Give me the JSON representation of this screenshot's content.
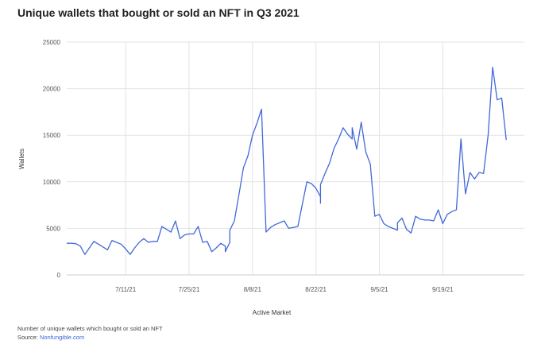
{
  "chart_data": {
    "type": "line",
    "title": "Unique wallets that bought or sold an NFT in Q3 2021",
    "xlabel": "Active Market",
    "ylabel": "Wallets",
    "ylim": [
      0,
      25000
    ],
    "yticks": [
      "0",
      "5000",
      "10000",
      "15000",
      "20000",
      "25000"
    ],
    "x_range": [
      "2021-06-28",
      "2021-10-07"
    ],
    "xticks": [
      {
        "date": "2021-07-11",
        "label": "7/11/21"
      },
      {
        "date": "2021-07-25",
        "label": "7/25/21"
      },
      {
        "date": "2021-08-08",
        "label": "8/8/21"
      },
      {
        "date": "2021-08-22",
        "label": "8/22/21"
      },
      {
        "date": "2021-09-05",
        "label": "9/5/21"
      },
      {
        "date": "2021-09-19",
        "label": "9/19/21"
      }
    ],
    "grid": {
      "x": true,
      "y": true
    },
    "series": [
      {
        "color": "#4169d8",
        "x": [
          "2021-06-28",
          "2021-06-29",
          "2021-06-30",
          "2021-07-01",
          "2021-07-02",
          "2021-07-03",
          "2021-07-04",
          "2021-07-05",
          "2021-07-06",
          "2021-07-07",
          "2021-07-08",
          "2021-07-09",
          "2021-07-10",
          "2021-07-11",
          "2021-07-12",
          "2021-07-13",
          "2021-07-14",
          "2021-07-15",
          "2021-07-16",
          "2021-07-17",
          "2021-07-18",
          "2021-07-19",
          "2021-07-20",
          "2021-07-21",
          "2021-07-22",
          "2021-07-23",
          "2021-07-24",
          "2021-07-25",
          "2021-07-26",
          "2021-07-27",
          "2021-07-28",
          "2021-07-29",
          "2021-07-30",
          "2021-07-31",
          "2021-08-01",
          "2021-08-02",
          "2021-08-02",
          "2021-08-03",
          "2021-08-03",
          "2021-08-04",
          "2021-08-05",
          "2021-08-06",
          "2021-08-07",
          "2021-08-08",
          "2021-08-09",
          "2021-08-10",
          "2021-08-11",
          "2021-08-12",
          "2021-08-13",
          "2021-08-14",
          "2021-08-15",
          "2021-08-16",
          "2021-08-17",
          "2021-08-18",
          "2021-08-19",
          "2021-08-20",
          "2021-08-21",
          "2021-08-22",
          "2021-08-23",
          "2021-08-23",
          "2021-08-23",
          "2021-08-24",
          "2021-08-25",
          "2021-08-26",
          "2021-08-27",
          "2021-08-28",
          "2021-08-29",
          "2021-08-30",
          "2021-08-30",
          "2021-08-31",
          "2021-09-01",
          "2021-09-02",
          "2021-09-03",
          "2021-09-04",
          "2021-09-05",
          "2021-09-06",
          "2021-09-07",
          "2021-09-08",
          "2021-09-09",
          "2021-09-09",
          "2021-09-10",
          "2021-09-11",
          "2021-09-12",
          "2021-09-13",
          "2021-09-14",
          "2021-09-15",
          "2021-09-16",
          "2021-09-17",
          "2021-09-18",
          "2021-09-19",
          "2021-09-20",
          "2021-09-21",
          "2021-09-22",
          "2021-09-23",
          "2021-09-24",
          "2021-09-25",
          "2021-09-26",
          "2021-09-27",
          "2021-09-28",
          "2021-09-29",
          "2021-09-30",
          "2021-10-01",
          "2021-10-02",
          "2021-10-03"
        ],
        "y": [
          3400,
          3400,
          3350,
          3100,
          2200,
          2900,
          3600,
          3300,
          3000,
          2700,
          3700,
          3500,
          3300,
          2800,
          2200,
          2900,
          3500,
          3900,
          3500,
          3600,
          3600,
          5200,
          4900,
          4600,
          5800,
          3900,
          4300,
          4400,
          4400,
          5200,
          3500,
          3600,
          2500,
          2900,
          3400,
          3100,
          2500,
          3500,
          4800,
          5800,
          8600,
          11500,
          12800,
          15000,
          16300,
          17800,
          4600,
          5100,
          5400,
          5600,
          5800,
          5000,
          5100,
          5200,
          7600,
          10000,
          9800,
          9300,
          8400,
          7700,
          9700,
          10900,
          12000,
          13600,
          14600,
          15800,
          15100,
          14600,
          15800,
          13500,
          16400,
          13200,
          11900,
          6300,
          6500,
          5500,
          5200,
          5000,
          4800,
          5600,
          6100,
          4900,
          4500,
          6300,
          6000,
          5900,
          5900,
          5800,
          7000,
          5500,
          6500,
          6800,
          7000,
          14600,
          8700,
          11000,
          10300,
          11000,
          10900,
          15000,
          22300,
          18800,
          19000,
          14500
        ]
      }
    ]
  },
  "footnote": {
    "text": "Number of unique wallets which bought or sold an NFT",
    "source_prefix": "Source: ",
    "source_link": "Nonfungible.com"
  }
}
